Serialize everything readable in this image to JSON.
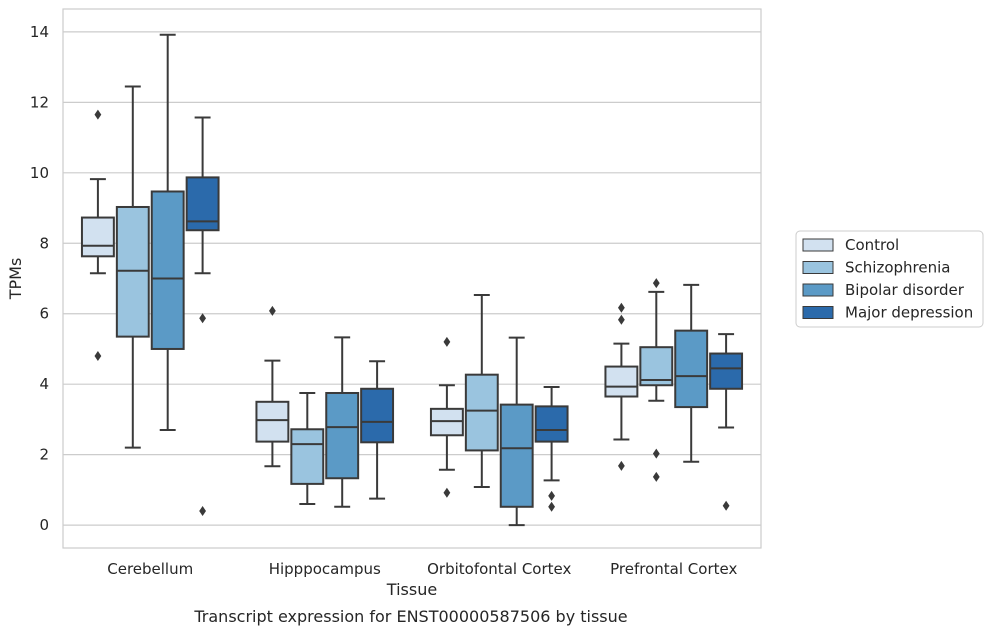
{
  "chart_data": {
    "type": "box",
    "title": "Transcript expression for ENST00000587506 by tissue",
    "xlabel": "Tissue",
    "ylabel": "TPMs",
    "ylim": [
      -0.65,
      14.65
    ],
    "yticks": [
      0,
      2,
      4,
      6,
      8,
      10,
      12,
      14
    ],
    "grid": "horizontal",
    "legend_position": "right",
    "categories": [
      "Cerebellum",
      "Hipppocampus",
      "Orbitofontal Cortex",
      "Prefrontal Cortex"
    ],
    "series": [
      {
        "name": "Control",
        "color": "#d2e1f0",
        "boxes": [
          {
            "whislo": 7.15,
            "q1": 7.63,
            "med": 7.93,
            "q3": 8.73,
            "whishi": 9.82,
            "fliers": [
              11.65,
              4.8
            ]
          },
          {
            "whislo": 1.67,
            "q1": 2.37,
            "med": 2.98,
            "q3": 3.5,
            "whishi": 4.67,
            "fliers": [
              6.08
            ]
          },
          {
            "whislo": 1.57,
            "q1": 2.55,
            "med": 2.95,
            "q3": 3.3,
            "whishi": 3.97,
            "fliers": [
              5.2,
              0.92
            ]
          },
          {
            "whislo": 2.43,
            "q1": 3.65,
            "med": 3.93,
            "q3": 4.5,
            "whishi": 5.15,
            "fliers": [
              6.17,
              5.83,
              1.68
            ]
          }
        ]
      },
      {
        "name": "Schizophrenia",
        "color": "#9ac4df",
        "boxes": [
          {
            "whislo": 2.2,
            "q1": 5.35,
            "med": 7.22,
            "q3": 9.03,
            "whishi": 12.45,
            "fliers": []
          },
          {
            "whislo": 0.6,
            "q1": 1.17,
            "med": 2.3,
            "q3": 2.72,
            "whishi": 3.75,
            "fliers": []
          },
          {
            "whislo": 1.08,
            "q1": 2.12,
            "med": 3.25,
            "q3": 4.27,
            "whishi": 6.53,
            "fliers": []
          },
          {
            "whislo": 3.53,
            "q1": 3.97,
            "med": 4.12,
            "q3": 5.05,
            "whishi": 6.62,
            "fliers": [
              6.87,
              2.03,
              1.37
            ]
          }
        ]
      },
      {
        "name": "Bipolar disorder",
        "color": "#5b9ac6",
        "boxes": [
          {
            "whislo": 2.7,
            "q1": 5.0,
            "med": 7.0,
            "q3": 9.47,
            "whishi": 13.92,
            "fliers": []
          },
          {
            "whislo": 0.52,
            "q1": 1.33,
            "med": 2.78,
            "q3": 3.75,
            "whishi": 5.33,
            "fliers": []
          },
          {
            "whislo": 0.0,
            "q1": 0.52,
            "med": 2.18,
            "q3": 3.42,
            "whishi": 5.32,
            "fliers": []
          },
          {
            "whislo": 1.8,
            "q1": 3.35,
            "med": 4.23,
            "q3": 5.52,
            "whishi": 6.82,
            "fliers": []
          }
        ]
      },
      {
        "name": "Major depression",
        "color": "#2b6aab",
        "boxes": [
          {
            "whislo": 7.15,
            "q1": 8.37,
            "med": 8.62,
            "q3": 9.87,
            "whishi": 11.57,
            "fliers": [
              5.87,
              0.4
            ]
          },
          {
            "whislo": 0.75,
            "q1": 2.35,
            "med": 2.93,
            "q3": 3.87,
            "whishi": 4.65,
            "fliers": []
          },
          {
            "whislo": 1.27,
            "q1": 2.37,
            "med": 2.7,
            "q3": 3.37,
            "whishi": 3.92,
            "fliers": [
              0.83,
              0.52
            ]
          },
          {
            "whislo": 2.77,
            "q1": 3.87,
            "med": 4.45,
            "q3": 4.87,
            "whishi": 5.42,
            "fliers": [
              0.55
            ]
          }
        ]
      }
    ]
  }
}
